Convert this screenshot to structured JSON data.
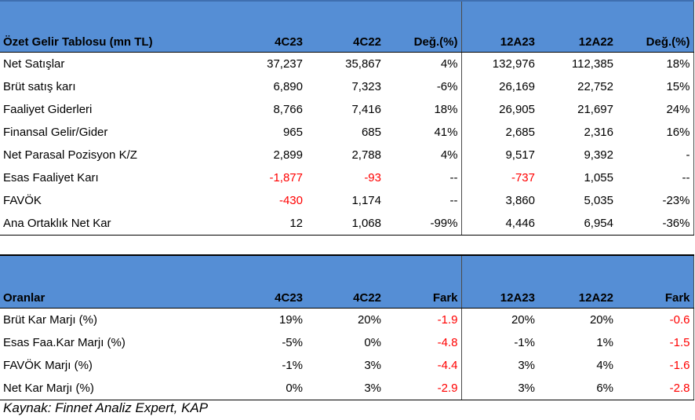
{
  "income_table": {
    "headers": [
      "Özet Gelir Tablosu (mn TL)",
      "4C23",
      "4C22",
      "Değ.(%)",
      "12A23",
      "12A22",
      "Değ.(%)"
    ],
    "rows": [
      {
        "label": "Net Satışlar",
        "v": [
          "37,237",
          "35,867",
          "4%",
          "132,976",
          "112,385",
          "18%"
        ],
        "neg": [
          false,
          false,
          false,
          false,
          false,
          false
        ]
      },
      {
        "label": "Brüt satış karı",
        "v": [
          "6,890",
          "7,323",
          "-6%",
          "26,169",
          "22,752",
          "15%"
        ],
        "neg": [
          false,
          false,
          false,
          false,
          false,
          false
        ]
      },
      {
        "label": "Faaliyet Giderleri",
        "v": [
          "8,766",
          "7,416",
          "18%",
          "26,905",
          "21,697",
          "24%"
        ],
        "neg": [
          false,
          false,
          false,
          false,
          false,
          false
        ]
      },
      {
        "label": "Finansal Gelir/Gider",
        "v": [
          "965",
          "685",
          "41%",
          "2,685",
          "2,316",
          "16%"
        ],
        "neg": [
          false,
          false,
          false,
          false,
          false,
          false
        ]
      },
      {
        "label": "Net Parasal Pozisyon K/Z",
        "v": [
          "2,899",
          "2,788",
          "4%",
          "9,517",
          "9,392",
          "-"
        ],
        "neg": [
          false,
          false,
          false,
          false,
          false,
          false
        ]
      },
      {
        "label": "Esas Faaliyet Karı",
        "v": [
          "-1,877",
          "-93",
          "--",
          "-737",
          "1,055",
          "--"
        ],
        "neg": [
          true,
          true,
          false,
          true,
          false,
          false
        ]
      },
      {
        "label": "FAVÖK",
        "v": [
          "-430",
          "1,174",
          "--",
          "3,860",
          "5,035",
          "-23%"
        ],
        "neg": [
          true,
          false,
          false,
          false,
          false,
          false
        ]
      },
      {
        "label": "Ana Ortaklık Net Kar",
        "v": [
          "12",
          "1,068",
          "-99%",
          "4,446",
          "6,954",
          "-36%"
        ],
        "neg": [
          false,
          false,
          false,
          false,
          false,
          false
        ]
      }
    ]
  },
  "ratio_table": {
    "headers": [
      "Oranlar",
      "4C23",
      "4C22",
      "Fark",
      "12A23",
      "12A22",
      "Fark"
    ],
    "rows": [
      {
        "label": "Brüt Kar Marjı (%)",
        "v": [
          "19%",
          "20%",
          "-1.9",
          "20%",
          "20%",
          "-0.6"
        ],
        "neg": [
          false,
          false,
          true,
          false,
          false,
          true
        ]
      },
      {
        "label": "Esas Faa.Kar Marjı (%)",
        "v": [
          "-5%",
          "0%",
          "-4.8",
          "-1%",
          "1%",
          "-1.5"
        ],
        "neg": [
          false,
          false,
          true,
          false,
          false,
          true
        ]
      },
      {
        "label": "FAVÖK Marjı (%)",
        "v": [
          "-1%",
          "3%",
          "-4.4",
          "3%",
          "4%",
          "-1.6"
        ],
        "neg": [
          false,
          false,
          true,
          false,
          false,
          true
        ]
      },
      {
        "label": "Net Kar Marjı (%)",
        "v": [
          "0%",
          "3%",
          "-2.9",
          "3%",
          "6%",
          "-2.8"
        ],
        "neg": [
          false,
          false,
          true,
          false,
          false,
          true
        ]
      }
    ]
  },
  "source": "Kaynak: Finnet Analiz Expert, KAP",
  "colors": {
    "header_bg": "#558ED5",
    "negative": "#FF0000"
  }
}
